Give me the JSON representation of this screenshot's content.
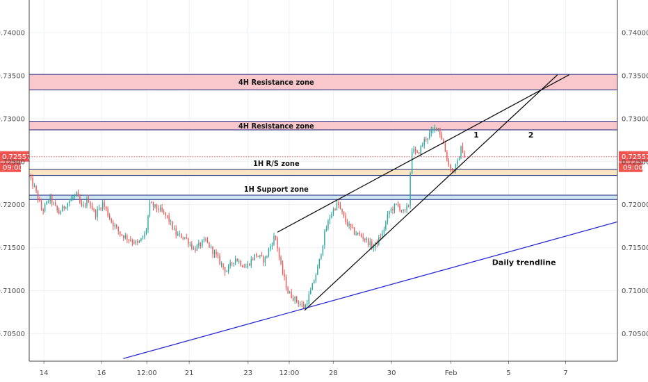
{
  "chart_data": {
    "type": "candlestick",
    "title": "",
    "xlabel": "",
    "ylabel": "",
    "ylim": [
      0.7018,
      0.7438
    ],
    "y_ticks": [
      "0.70500",
      "0.71000",
      "0.71500",
      "0.72000",
      "0.72500",
      "0.73000",
      "0.73500",
      "0.74000"
    ],
    "x_ticks": [
      {
        "label": "14",
        "pos": 0.025
      },
      {
        "label": "16",
        "pos": 0.123
      },
      {
        "label": "12:00",
        "pos": 0.2
      },
      {
        "label": "21",
        "pos": 0.272
      },
      {
        "label": "23",
        "pos": 0.372
      },
      {
        "label": "12:00",
        "pos": 0.442
      },
      {
        "label": "28",
        "pos": 0.517
      },
      {
        "label": "30",
        "pos": 0.616
      },
      {
        "label": "Feb",
        "pos": 0.717
      },
      {
        "label": "5",
        "pos": 0.815
      },
      {
        "label": "7",
        "pos": 0.912
      }
    ],
    "current_price": {
      "value": 0.72557,
      "label": "0.72557",
      "time": "09:00",
      "color": "#ef5350"
    },
    "zones": [
      {
        "label": "4H Resistance zone",
        "y_low": 0.73335,
        "y_high": 0.73515,
        "fill": "#f8c8cc"
      },
      {
        "label": "4H Resistance zone",
        "y_low": 0.7287,
        "y_high": 0.7297,
        "fill": "#f8c8cc"
      },
      {
        "label": "1H R/S zone",
        "y_low": 0.7234,
        "y_high": 0.7241,
        "fill": "#fbe6c4"
      },
      {
        "label": "1H Support zone",
        "y_low": 0.7206,
        "y_high": 0.7211,
        "fill": "#cfe8ef"
      }
    ],
    "trendlines": [
      {
        "name": "Daily trendline",
        "x1": 0.16,
        "y1": 0.7021,
        "x2": 1.0,
        "y2": 0.718,
        "color": "#2a2ad8"
      },
      {
        "name": "",
        "x1": 0.422,
        "y1": 0.7168,
        "x2": 0.918,
        "y2": 0.7351,
        "color": "#111111"
      },
      {
        "name": "",
        "x1": 0.468,
        "y1": 0.7077,
        "x2": 0.898,
        "y2": 0.7351,
        "color": "#111111"
      }
    ],
    "annotations": [
      {
        "text": "1",
        "x": 0.76,
        "y": 0.7278
      },
      {
        "text": "2",
        "x": 0.853,
        "y": 0.7278
      },
      {
        "text": "Daily trendline",
        "x": 0.787,
        "y": 0.713
      }
    ],
    "bull_color": "#26a69a",
    "bear_color": "#ef5350",
    "path_points": [
      [
        0.0,
        0.7232
      ],
      [
        0.01,
        0.7218
      ],
      [
        0.022,
        0.7192
      ],
      [
        0.035,
        0.7208
      ],
      [
        0.05,
        0.719
      ],
      [
        0.065,
        0.7202
      ],
      [
        0.08,
        0.7212
      ],
      [
        0.09,
        0.7195
      ],
      [
        0.1,
        0.7207
      ],
      [
        0.112,
        0.7188
      ],
      [
        0.125,
        0.7202
      ],
      [
        0.14,
        0.718
      ],
      [
        0.155,
        0.7166
      ],
      [
        0.17,
        0.716
      ],
      [
        0.185,
        0.7154
      ],
      [
        0.198,
        0.7167
      ],
      [
        0.205,
        0.72
      ],
      [
        0.22,
        0.7195
      ],
      [
        0.235,
        0.7185
      ],
      [
        0.25,
        0.7165
      ],
      [
        0.265,
        0.7162
      ],
      [
        0.28,
        0.7148
      ],
      [
        0.3,
        0.7158
      ],
      [
        0.318,
        0.714
      ],
      [
        0.335,
        0.7122
      ],
      [
        0.35,
        0.7138
      ],
      [
        0.368,
        0.7127
      ],
      [
        0.385,
        0.7142
      ],
      [
        0.4,
        0.7135
      ],
      [
        0.418,
        0.7165
      ],
      [
        0.428,
        0.7128
      ],
      [
        0.44,
        0.7098
      ],
      [
        0.455,
        0.7088
      ],
      [
        0.468,
        0.708
      ],
      [
        0.48,
        0.7102
      ],
      [
        0.492,
        0.713
      ],
      [
        0.502,
        0.7165
      ],
      [
        0.512,
        0.7188
      ],
      [
        0.524,
        0.7202
      ],
      [
        0.538,
        0.718
      ],
      [
        0.552,
        0.7168
      ],
      [
        0.568,
        0.7162
      ],
      [
        0.585,
        0.715
      ],
      [
        0.6,
        0.7165
      ],
      [
        0.612,
        0.7192
      ],
      [
        0.625,
        0.72
      ],
      [
        0.638,
        0.719
      ],
      [
        0.645,
        0.72
      ],
      [
        0.65,
        0.7265
      ],
      [
        0.66,
        0.7258
      ],
      [
        0.672,
        0.7275
      ],
      [
        0.685,
        0.7285
      ],
      [
        0.694,
        0.7292
      ],
      [
        0.704,
        0.7272
      ],
      [
        0.712,
        0.7248
      ],
      [
        0.72,
        0.7238
      ],
      [
        0.728,
        0.7248
      ],
      [
        0.735,
        0.7268
      ],
      [
        0.74,
        0.7256
      ]
    ]
  }
}
